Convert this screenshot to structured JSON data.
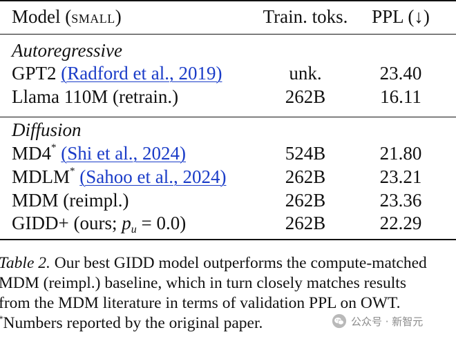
{
  "header": {
    "model_label": "Model (",
    "model_small": "small",
    "model_close": ")",
    "train_toks": "Train. toks.",
    "ppl": "PPL (↓)"
  },
  "groups": [
    {
      "title": "Autoregressive",
      "rows": [
        {
          "model": "GPT2",
          "citation": "(Radford et al., 2019)",
          "toks": "unk.",
          "ppl": "23.40"
        },
        {
          "model": "Llama 110M (retrain.)",
          "toks": "262B",
          "ppl": "16.11"
        }
      ]
    },
    {
      "title": "Diffusion",
      "rows": [
        {
          "model": "MD4",
          "marker": "*",
          "citation": "(Shi et al., 2024)",
          "toks": "524B",
          "ppl": "21.80"
        },
        {
          "model": "MDLM",
          "marker": "*",
          "citation": "(Sahoo et al., 2024)",
          "toks": "262B",
          "ppl": "23.21"
        },
        {
          "model": "MDM (reimpl.)",
          "toks": "262B",
          "ppl": "23.36"
        },
        {
          "model_prefix": "GIDD+ (ours; ",
          "math_var": "p",
          "math_sub": "u",
          "math_rest": " = 0.0)",
          "toks": "262B",
          "ppl": "22.29"
        }
      ]
    }
  ],
  "caption": {
    "label": "Table 2.",
    "line1": " Our best GIDD model outperforms the compute-matched",
    "line2": "MDM (reimpl.)  baseline, which in turn closely matches results",
    "line3": "from the MDM literature in terms of validation PPL on OWT.",
    "footnote_mark": "*",
    "line4": "Numbers reported by the original paper."
  },
  "watermark": {
    "text": "公众号 · 新智元",
    "icon": "wechat-icon"
  }
}
